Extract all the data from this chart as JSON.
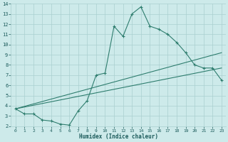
{
  "xlabel": "Humidex (Indice chaleur)",
  "xlim": [
    -0.5,
    23.5
  ],
  "ylim": [
    2,
    14
  ],
  "yticks": [
    2,
    3,
    4,
    5,
    6,
    7,
    8,
    9,
    10,
    11,
    12,
    13,
    14
  ],
  "xticks": [
    0,
    1,
    2,
    3,
    4,
    5,
    6,
    7,
    8,
    9,
    10,
    11,
    12,
    13,
    14,
    15,
    16,
    17,
    18,
    19,
    20,
    21,
    22,
    23
  ],
  "line_color": "#2e7d6e",
  "bg_color": "#cdeaea",
  "grid_color": "#aacfcf",
  "line1_x": [
    0,
    1,
    2,
    3,
    4,
    5,
    6,
    7,
    8,
    9,
    10,
    11,
    12,
    13,
    14,
    15,
    16,
    17,
    18,
    19,
    20,
    21,
    22,
    23
  ],
  "line1_y": [
    3.7,
    3.2,
    3.2,
    2.6,
    2.5,
    2.2,
    2.1,
    3.5,
    4.5,
    7.0,
    7.2,
    11.8,
    10.8,
    13.0,
    13.7,
    11.8,
    11.5,
    11.0,
    10.2,
    9.2,
    8.0,
    7.7,
    7.7,
    6.5
  ],
  "line2_x": [
    0,
    23
  ],
  "line2_y": [
    3.7,
    9.2
  ],
  "line3_x": [
    0,
    23
  ],
  "line3_y": [
    3.7,
    7.7
  ]
}
